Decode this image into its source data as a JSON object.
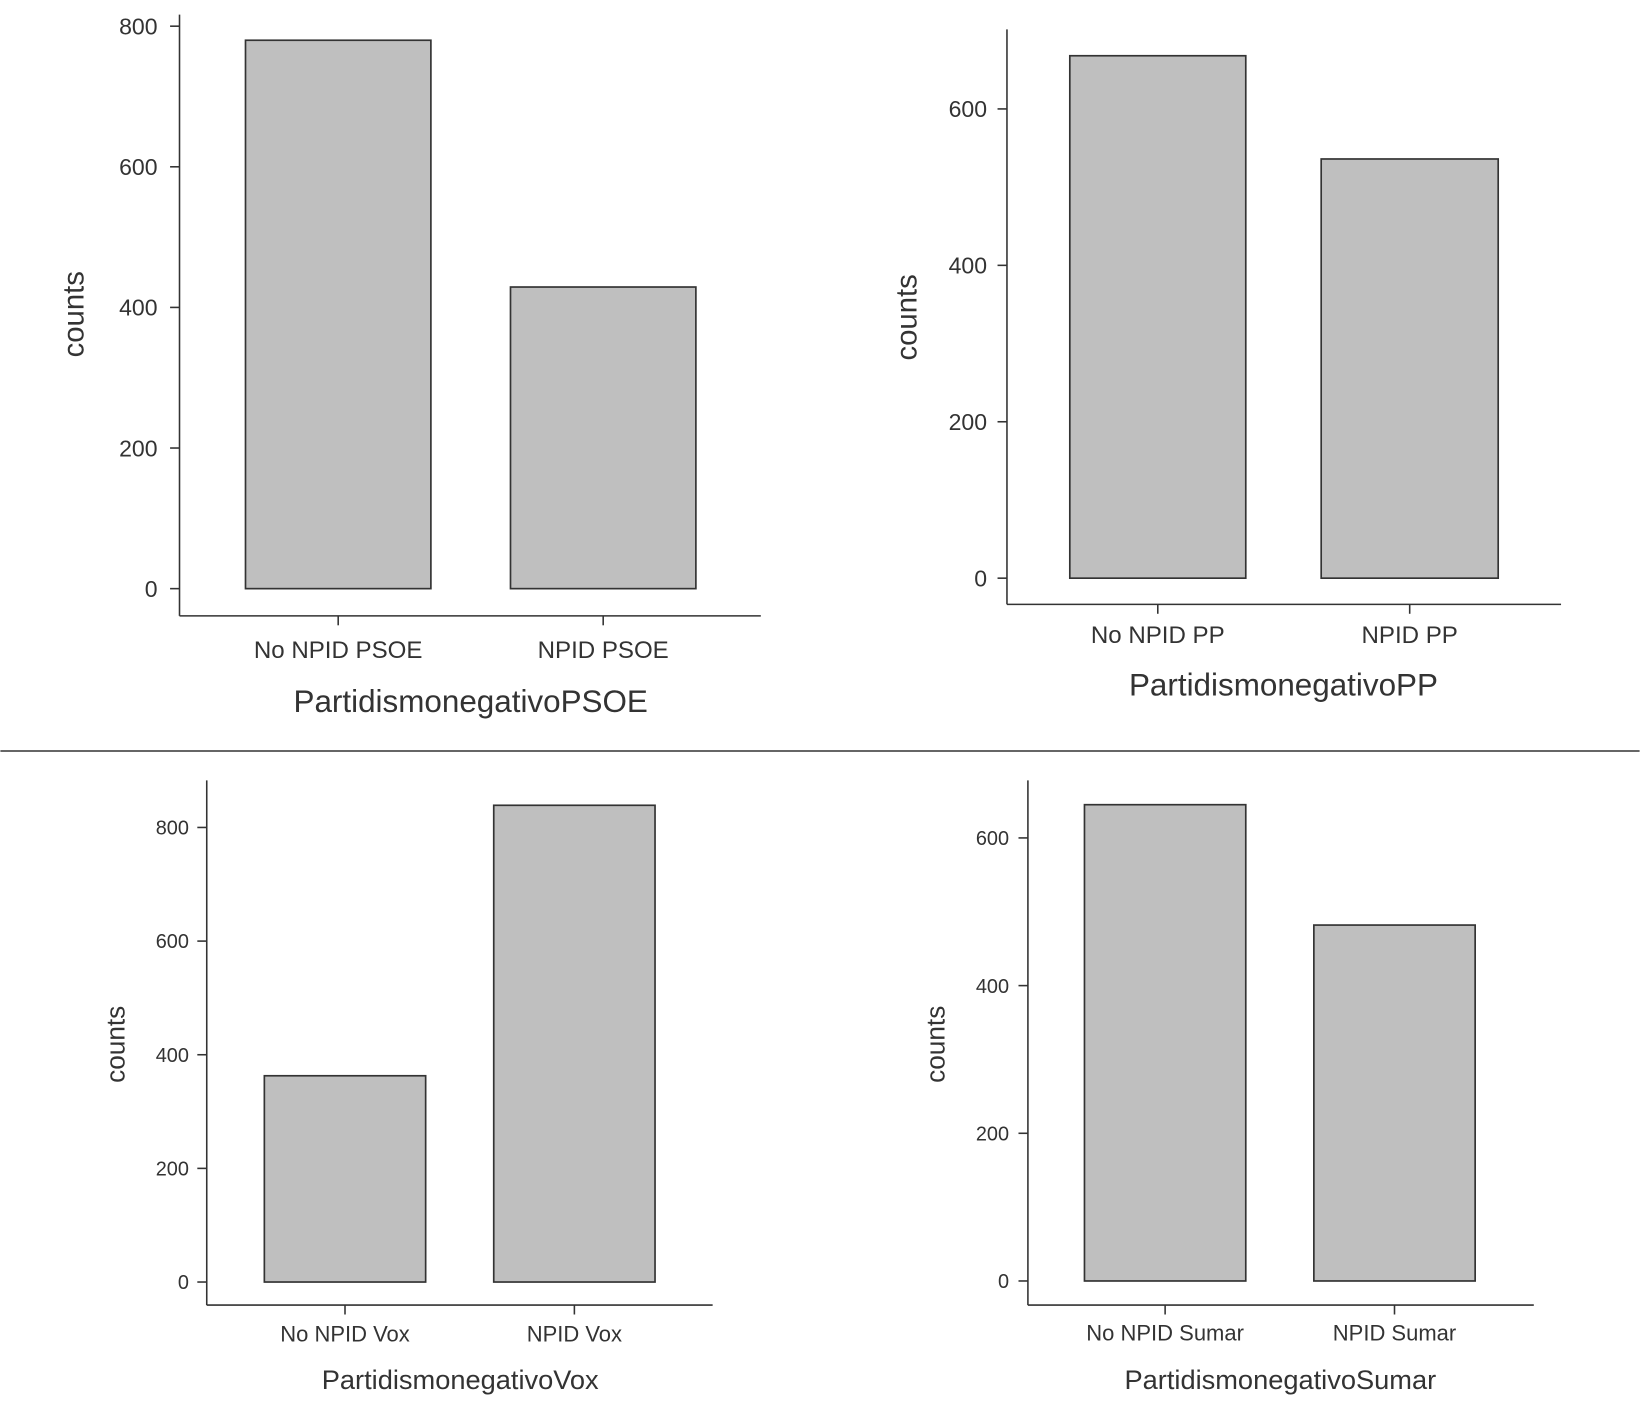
{
  "chart_data": [
    {
      "type": "bar",
      "title": "",
      "xlabel": "PartidismonegativoPSOE",
      "ylabel": "counts",
      "categories": [
        "No NPID PSOE",
        "NPID PSOE"
      ],
      "values": [
        780,
        429
      ],
      "yticks": [
        0,
        200,
        400,
        600,
        800
      ],
      "ylim": [
        0,
        800
      ],
      "grid": false
    },
    {
      "type": "bar",
      "title": "",
      "xlabel": "PartidismonegativoPP",
      "ylabel": "counts",
      "categories": [
        "No NPID PP",
        "NPID PP"
      ],
      "values": [
        668,
        536
      ],
      "yticks": [
        0,
        200,
        400,
        600
      ],
      "ylim": [
        0,
        600
      ],
      "grid": false
    },
    {
      "type": "bar",
      "title": "",
      "xlabel": "PartidismonegativoVox",
      "ylabel": "counts",
      "categories": [
        "No NPID Vox",
        "NPID Vox"
      ],
      "values": [
        363,
        839
      ],
      "yticks": [
        0,
        200,
        400,
        600,
        800
      ],
      "ylim": [
        0,
        800
      ],
      "grid": false
    },
    {
      "type": "bar",
      "title": "",
      "xlabel": "PartidismonegativoSumar",
      "ylabel": "counts",
      "categories": [
        "No NPID Sumar",
        "NPID Sumar"
      ],
      "values": [
        645,
        482
      ],
      "yticks": [
        0,
        200,
        400,
        600
      ],
      "ylim": [
        0,
        600
      ],
      "grid": false
    }
  ]
}
